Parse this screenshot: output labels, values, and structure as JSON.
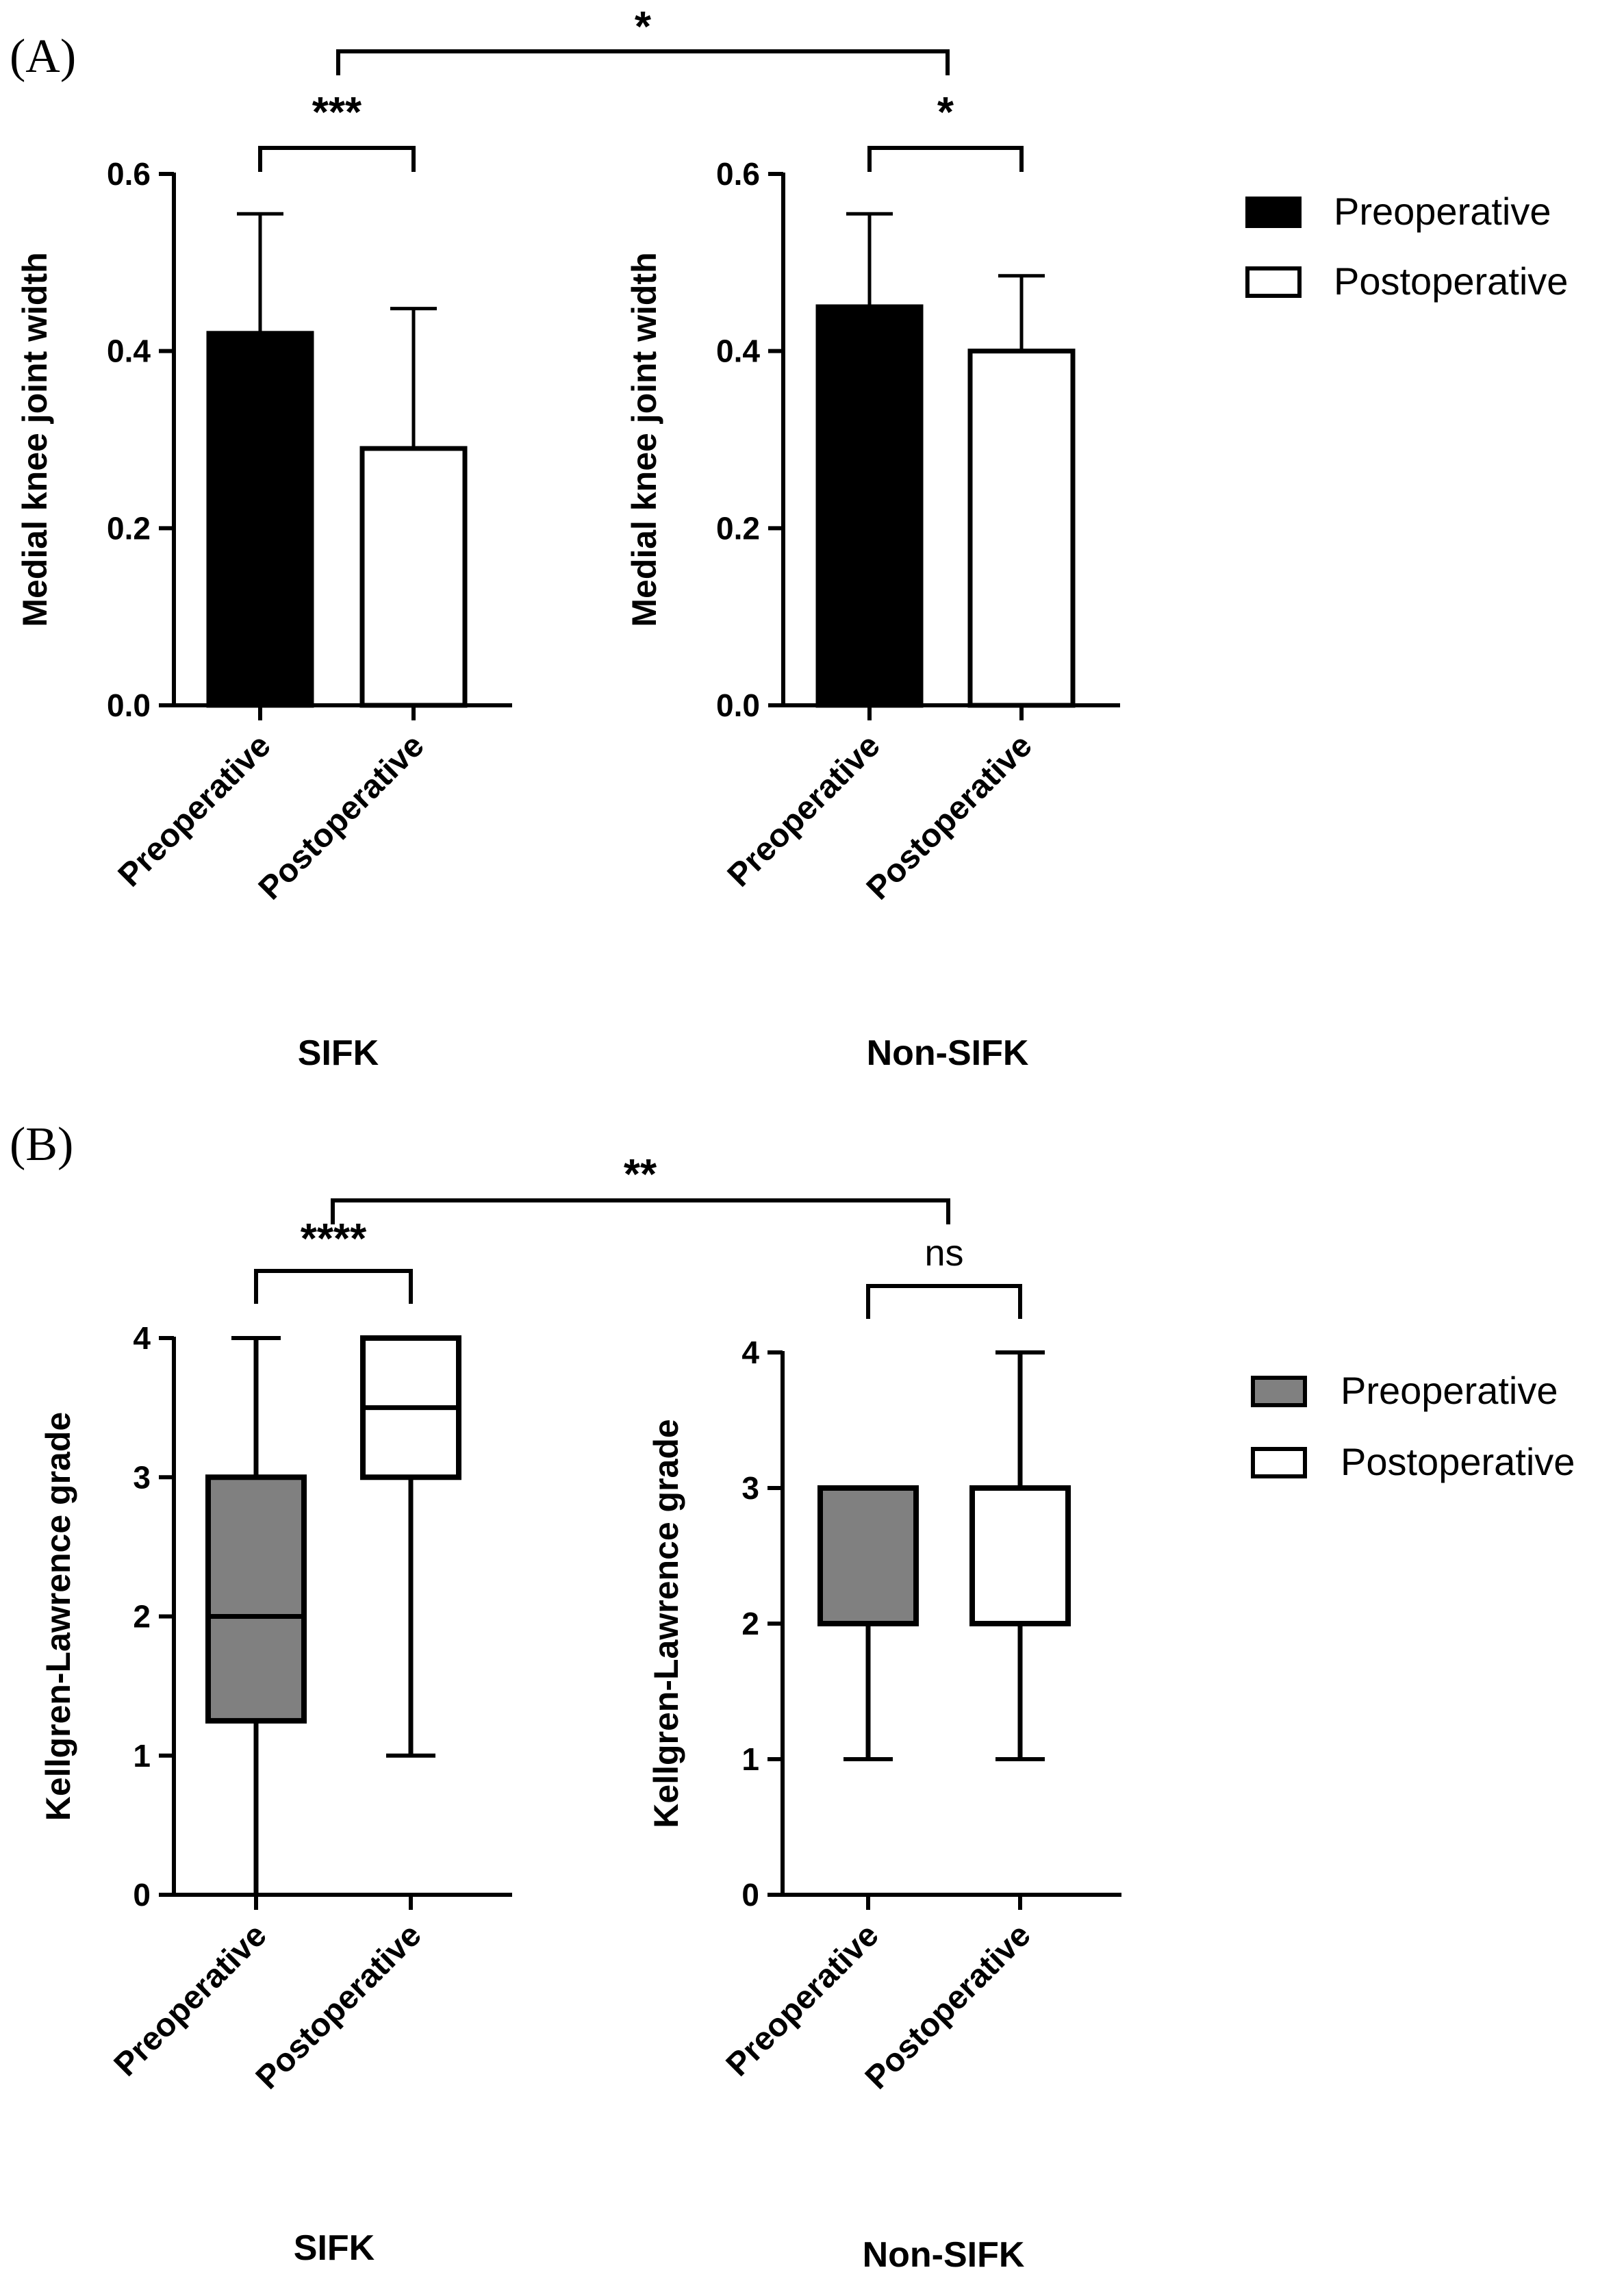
{
  "panels": [
    {
      "letter": "(A)",
      "type": "bar",
      "legend": [
        "Preoperative",
        "Postoperative"
      ],
      "chart_data": [
        {
          "type": "bar",
          "group": "SIFK",
          "ylabel": "Medial knee joint width",
          "ylim": [
            0,
            0.6
          ],
          "yticks": [
            "0.0",
            "0.2",
            "0.4",
            "0.6"
          ],
          "categories": [
            "Preoperative",
            "Postoperative"
          ],
          "values": [
            0.42,
            0.29
          ],
          "errors_upper": [
            0.555,
            0.448
          ],
          "fill": [
            "#000000",
            "#ffffff"
          ],
          "bracket": "***"
        },
        {
          "type": "bar",
          "group": "Non-SIFK",
          "ylabel": "Medial knee joint width",
          "ylim": [
            0,
            0.6
          ],
          "yticks": [
            "0.0",
            "0.2",
            "0.4",
            "0.6"
          ],
          "categories": [
            "Preoperative",
            "Postoperative"
          ],
          "values": [
            0.45,
            0.4
          ],
          "errors_upper": [
            0.555,
            0.485
          ],
          "fill": [
            "#000000",
            "#ffffff"
          ],
          "bracket": "*"
        }
      ],
      "between_bracket": "*"
    },
    {
      "letter": "(B)",
      "type": "box",
      "legend": [
        "Preoperative",
        "Postoperative"
      ],
      "chart_data": [
        {
          "type": "box",
          "group": "SIFK",
          "ylabel": "Kellgren-Lawrence grade",
          "ylim": [
            0,
            4
          ],
          "yticks": [
            "0",
            "1",
            "2",
            "3",
            "4"
          ],
          "categories": [
            "Preoperative",
            "Postoperative"
          ],
          "boxes": [
            {
              "min": 0,
              "q1": 1.25,
              "median": 2,
              "q3": 3,
              "max": 4
            },
            {
              "min": 1,
              "q1": 3,
              "median": 3.5,
              "q3": 4,
              "max": 4
            }
          ],
          "fill": [
            "#808080",
            "#ffffff"
          ],
          "bracket": "****"
        },
        {
          "type": "box",
          "group": "Non-SIFK",
          "ylabel": "Kellgren-Lawrence grade",
          "ylim": [
            0,
            4
          ],
          "yticks": [
            "0",
            "1",
            "2",
            "3",
            "4"
          ],
          "categories": [
            "Preoperative",
            "Postoperative"
          ],
          "boxes": [
            {
              "min": 1,
              "q1": 2,
              "median": 2,
              "q3": 3,
              "max": 3
            },
            {
              "min": 1,
              "q1": 2,
              "median": 2,
              "q3": 3,
              "max": 4
            }
          ],
          "fill": [
            "#808080",
            "#ffffff"
          ],
          "bracket": "ns"
        }
      ],
      "between_bracket": "**"
    }
  ]
}
